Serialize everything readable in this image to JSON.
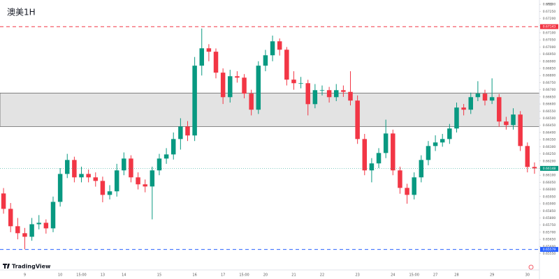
{
  "chart_data": {
    "type": "candlestick",
    "title": "澳美1H",
    "currency": "USD",
    "brand": "TradingView",
    "up_color": "#089981",
    "down_color": "#f23645",
    "categories": [
      null,
      null,
      null,
      "9",
      null,
      null,
      null,
      null,
      "10",
      null,
      null,
      "15:00",
      null,
      null,
      "13",
      null,
      null,
      "14",
      null,
      null,
      null,
      null,
      "15",
      null,
      null,
      null,
      null,
      "16",
      null,
      null,
      null,
      "17",
      null,
      null,
      "15:00",
      null,
      null,
      "20",
      null,
      null,
      null,
      "21",
      null,
      null,
      null,
      "22",
      null,
      null,
      null,
      null,
      "23",
      null,
      null,
      null,
      null,
      "24",
      null,
      null,
      "15:00",
      null,
      null,
      "27",
      null,
      null,
      "28",
      null,
      null,
      null,
      null,
      "29",
      null,
      null,
      null,
      null,
      "30",
      null
    ],
    "open": [
      0.65972,
      0.65864,
      0.65742,
      0.65693,
      0.65668,
      0.65756,
      0.65766,
      0.65727,
      0.65913,
      0.66109,
      0.66207,
      0.66085,
      0.66109,
      0.66085,
      0.6606,
      0.65962,
      0.65987,
      0.66134,
      0.66217,
      0.66085,
      0.66036,
      0.66021,
      0.66134,
      0.66217,
      0.66246,
      0.66354,
      0.66442,
      0.66379,
      0.66869,
      0.66991,
      0.66967,
      0.6682,
      0.66648,
      0.66795,
      0.66785,
      0.66673,
      0.6656,
      0.66869,
      0.66942,
      0.6704,
      0.66981,
      0.66771,
      0.66746,
      0.66746,
      0.66599,
      0.66697,
      0.66697,
      0.66648,
      0.66697,
      0.66685,
      0.66624,
      0.66354,
      0.66134,
      0.66183,
      0.66256,
      0.66393,
      0.66134,
      0.66011,
      0.65962,
      0.66085,
      0.66207,
      0.66305,
      0.6633,
      0.66354,
      0.66428,
      0.66575,
      0.6656,
      0.66648,
      0.66673,
      0.66624,
      0.66648,
      0.66477,
      0.66452,
      0.66526,
      0.66305,
      0.66158
    ],
    "high": [
      0.6601,
      0.65905,
      0.658,
      0.6573,
      0.658,
      0.6582,
      0.6579,
      0.6595,
      0.6615,
      0.6625,
      0.6623,
      0.6616,
      0.6614,
      0.6612,
      0.6609,
      0.6603,
      0.6618,
      0.6626,
      0.6624,
      0.6612,
      0.6607,
      0.6616,
      0.6625,
      0.6629,
      0.664,
      0.665,
      0.6648,
      0.6693,
      0.6713,
      0.6702,
      0.6699,
      0.6685,
      0.6684,
      0.6683,
      0.6681,
      0.667,
      0.669,
      0.6698,
      0.6708,
      0.6706,
      0.67,
      0.6683,
      0.6679,
      0.6677,
      0.6674,
      0.6673,
      0.6672,
      0.6674,
      0.6673,
      0.6683,
      0.6666,
      0.6639,
      0.6622,
      0.6629,
      0.6649,
      0.6642,
      0.6616,
      0.6604,
      0.6612,
      0.6624,
      0.6634,
      0.6638,
      0.6639,
      0.6646,
      0.6661,
      0.666,
      0.6668,
      0.6676,
      0.667,
      0.6678,
      0.6667,
      0.6651,
      0.6657,
      0.6655,
      0.6633,
      0.6619
    ],
    "low": [
      0.6583,
      0.657,
      0.6565,
      0.6558,
      0.6564,
      0.6572,
      0.6569,
      0.657,
      0.6588,
      0.6608,
      0.6605,
      0.6605,
      0.6605,
      0.6602,
      0.6591,
      0.6593,
      0.6595,
      0.661,
      0.6605,
      0.66,
      0.6598,
      0.6579,
      0.661,
      0.6618,
      0.6621,
      0.6628,
      0.6634,
      0.6634,
      0.668,
      0.669,
      0.6678,
      0.666,
      0.6661,
      0.6675,
      0.6664,
      0.6652,
      0.6653,
      0.6683,
      0.669,
      0.6694,
      0.6673,
      0.667,
      0.6671,
      0.6652,
      0.6657,
      0.6666,
      0.6661,
      0.6662,
      0.6665,
      0.6659,
      0.6632,
      0.661,
      0.6605,
      0.6615,
      0.6622,
      0.661,
      0.6597,
      0.659,
      0.6593,
      0.6605,
      0.6617,
      0.6627,
      0.663,
      0.6632,
      0.664,
      0.6652,
      0.6653,
      0.6662,
      0.6659,
      0.666,
      0.6644,
      0.6642,
      0.6642,
      0.6627,
      0.6612,
      0.6611
    ],
    "close": [
      0.65864,
      0.65742,
      0.65693,
      0.65668,
      0.65756,
      0.65766,
      0.65727,
      0.65913,
      0.66109,
      0.66207,
      0.66085,
      0.66109,
      0.66085,
      0.6606,
      0.65962,
      0.65987,
      0.66134,
      0.66217,
      0.66085,
      0.66036,
      0.66021,
      0.66134,
      0.66217,
      0.66246,
      0.66354,
      0.66442,
      0.66379,
      0.66869,
      0.66991,
      0.66967,
      0.6682,
      0.66648,
      0.66795,
      0.66785,
      0.66673,
      0.6656,
      0.66869,
      0.66942,
      0.6704,
      0.66981,
      0.66771,
      0.66746,
      0.66746,
      0.66599,
      0.66697,
      0.66697,
      0.66648,
      0.66697,
      0.66685,
      0.66624,
      0.66354,
      0.66134,
      0.66183,
      0.66256,
      0.66393,
      0.66134,
      0.66011,
      0.65962,
      0.66085,
      0.66207,
      0.66305,
      0.6633,
      0.66354,
      0.66428,
      0.66575,
      0.6656,
      0.66648,
      0.66673,
      0.66624,
      0.66648,
      0.66477,
      0.66452,
      0.66526,
      0.66305,
      0.66158,
      0.66148
    ],
    "zone": [
      0.66442,
      0.66677
    ],
    "zone_color": "#e3e3e3",
    "hlines": [
      {
        "value": 0.67143,
        "color": "#f23645"
      },
      {
        "value": 0.65579,
        "color": "#2962ff"
      }
    ],
    "last_price": 0.66148,
    "ylim": [
      0.6544,
      0.6733
    ],
    "yticks": [
      {
        "value": 0.6555,
        "label": "0.65550"
      },
      {
        "value": 0.656,
        "label": "0.65600"
      },
      {
        "value": 0.6565,
        "label": "0.65650"
      },
      {
        "value": 0.657,
        "label": "0.65700"
      },
      {
        "value": 0.6575,
        "label": "0.65750"
      },
      {
        "value": 0.658,
        "label": "0.65800"
      },
      {
        "value": 0.6585,
        "label": "0.65850"
      },
      {
        "value": 0.659,
        "label": "0.65900"
      },
      {
        "value": 0.6595,
        "label": "0.65950"
      },
      {
        "value": 0.66,
        "label": "0.66000"
      },
      {
        "value": 0.6605,
        "label": "0.66050"
      },
      {
        "value": 0.661,
        "label": "0.66100"
      },
      {
        "value": 0.6615,
        "label": "0.66150"
      },
      {
        "value": 0.662,
        "label": "0.66200"
      },
      {
        "value": 0.6625,
        "label": "0.66250"
      },
      {
        "value": 0.663,
        "label": "0.66300"
      },
      {
        "value": 0.6635,
        "label": "0.66350"
      },
      {
        "value": 0.664,
        "label": "0.66400"
      },
      {
        "value": 0.6645,
        "label": "0.66450"
      },
      {
        "value": 0.665,
        "label": "0.66500"
      },
      {
        "value": 0.6655,
        "label": "0.66550"
      },
      {
        "value": 0.666,
        "label": "0.66600"
      },
      {
        "value": 0.6665,
        "label": "0.66650"
      },
      {
        "value": 0.667,
        "label": "0.66700"
      },
      {
        "value": 0.6675,
        "label": "0.66750"
      },
      {
        "value": 0.668,
        "label": "0.66800"
      },
      {
        "value": 0.6685,
        "label": "0.66850"
      },
      {
        "value": 0.669,
        "label": "0.66900"
      },
      {
        "value": 0.6695,
        "label": "0.66950"
      },
      {
        "value": 0.67,
        "label": "0.67000"
      },
      {
        "value": 0.6705,
        "label": "0.67050"
      },
      {
        "value": 0.671,
        "label": "0.67100"
      },
      {
        "value": 0.6715,
        "label": "0.67150"
      },
      {
        "value": 0.672,
        "label": "0.67200"
      },
      {
        "value": 0.6725,
        "label": "0.67250"
      },
      {
        "value": 0.673,
        "label": "0.67300"
      }
    ]
  }
}
